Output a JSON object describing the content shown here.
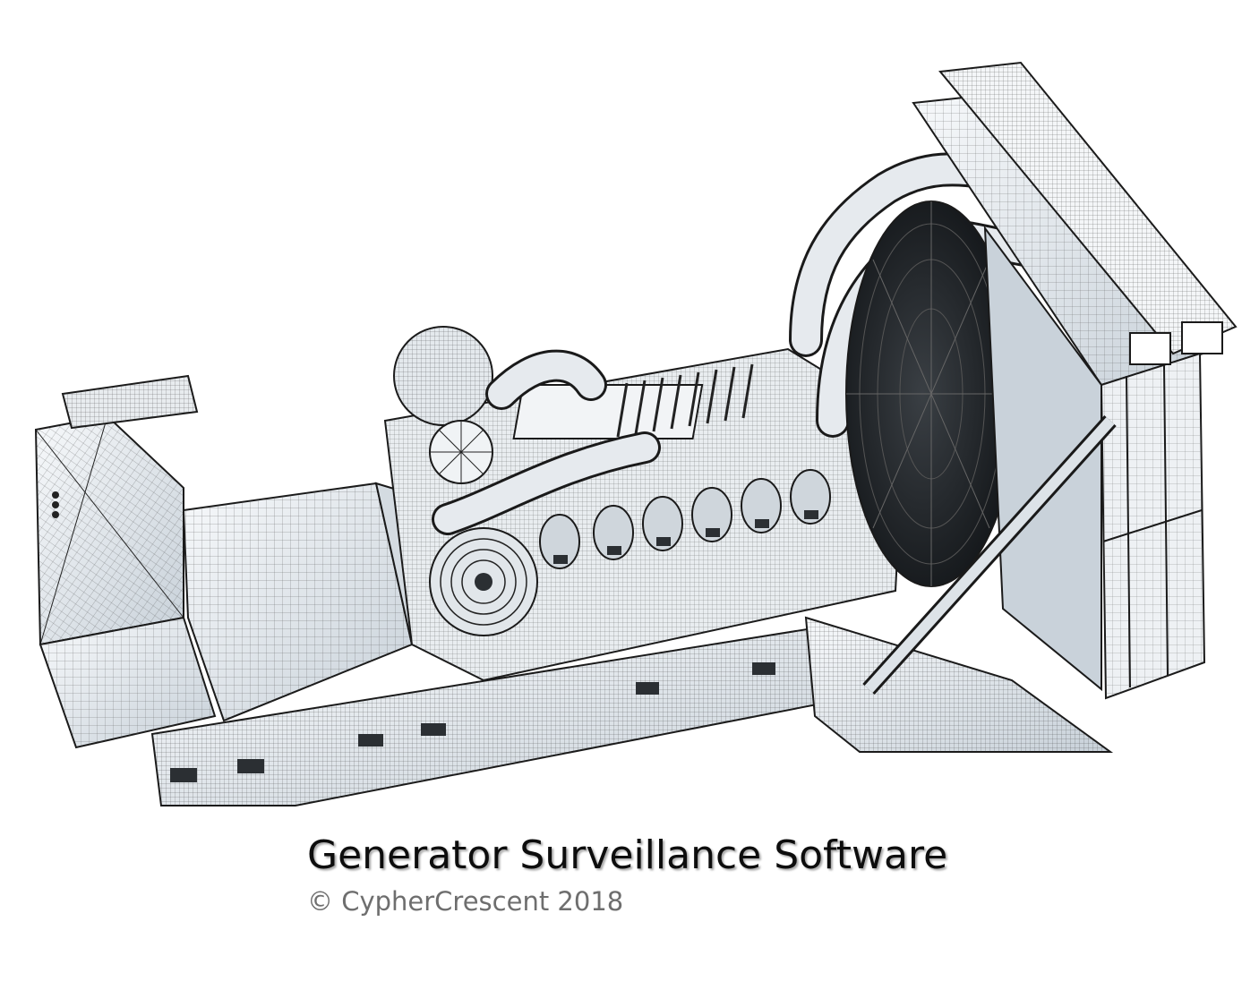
{
  "splash": {
    "title": "Generator Surveillance Software",
    "copyright": "© CypherCrescent 2018"
  },
  "illustration": {
    "subject": "generator-wireframe",
    "colors": {
      "line": "#1a1a1a",
      "panel": "#f4f6f8",
      "shade": "#c9d2da",
      "dark": "#2b2f33"
    }
  }
}
